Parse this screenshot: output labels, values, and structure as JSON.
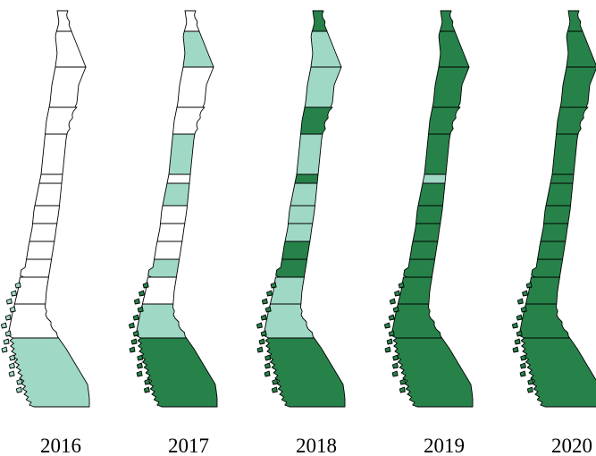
{
  "panels": [
    {
      "label": "2016"
    },
    {
      "label": "2017"
    },
    {
      "label": "2018"
    },
    {
      "label": "2019"
    },
    {
      "label": "2020"
    }
  ]
}
